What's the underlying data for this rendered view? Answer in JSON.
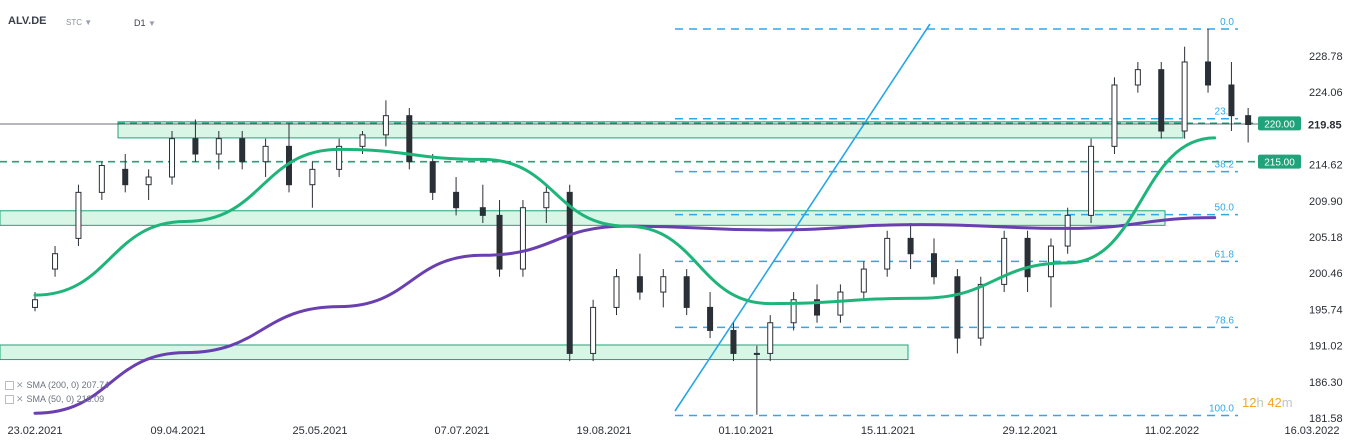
{
  "header": {
    "symbol": "ALV.DE",
    "source": "STC",
    "timeframe": "D1"
  },
  "legend": [
    {
      "label": "SMA (200, 0)",
      "value": "207.74",
      "color": "#6a3fb0"
    },
    {
      "label": "SMA (50, 0)",
      "value": "218.09",
      "color": "#1fb57a"
    }
  ],
  "timer": {
    "hours": "12",
    "h_unit": "h",
    "minutes": "42",
    "m_unit": "m"
  },
  "chart_data": {
    "type": "candlestick",
    "x_tick_labels": [
      "23.02.2021",
      "09.04.2021",
      "25.05.2021",
      "07.07.2021",
      "19.08.2021",
      "01.10.2021",
      "15.11.2021",
      "29.12.2021",
      "11.02.2022",
      "16.03.2022"
    ],
    "y_tick_labels": [
      "228.78",
      "224.06",
      "219.85",
      "214.62",
      "209.90",
      "205.18",
      "200.46",
      "195.74",
      "191.02",
      "186.30",
      "181.58"
    ],
    "ylim": [
      181.58,
      232.5
    ],
    "last_price": "219.85",
    "horizontal_levels": [
      {
        "label": "220.00",
        "value": 220.0,
        "color": "#1fa37a"
      },
      {
        "label": "215.00",
        "value": 215.0,
        "color": "#1fa37a"
      }
    ],
    "fibonacci": [
      {
        "label": "0.0",
        "value": 232.3
      },
      {
        "label": "23.6",
        "value": 220.6
      },
      {
        "label": "38.2",
        "value": 213.7
      },
      {
        "label": "50.0",
        "value": 208.1
      },
      {
        "label": "61.8",
        "value": 202.0
      },
      {
        "label": "78.6",
        "value": 193.4
      },
      {
        "label": "100.0",
        "value": 181.9
      }
    ],
    "zones": [
      {
        "from": 218.1,
        "to": 220.2
      },
      {
        "from": 206.7,
        "to": 208.6
      },
      {
        "from": 189.2,
        "to": 191.1
      }
    ],
    "series": [
      {
        "name": "SMA (200, 0)",
        "color": "#6a3fb0",
        "points": [
          [
            "2021-02-23",
            182.2
          ],
          [
            "2021-04-09",
            190.1
          ],
          [
            "2021-05-25",
            196.1
          ],
          [
            "2021-07-07",
            202.8
          ],
          [
            "2021-08-19",
            206.6
          ],
          [
            "2021-10-01",
            206.1
          ],
          [
            "2021-11-15",
            206.8
          ],
          [
            "2021-12-29",
            206.3
          ],
          [
            "2022-02-11",
            207.7
          ]
        ]
      },
      {
        "name": "SMA (50, 0)",
        "color": "#1fb57a",
        "points": [
          [
            "2021-02-23",
            197.6
          ],
          [
            "2021-04-09",
            207.2
          ],
          [
            "2021-05-25",
            216.6
          ],
          [
            "2021-07-07",
            215.3
          ],
          [
            "2021-08-19",
            206.6
          ],
          [
            "2021-10-01",
            196.5
          ],
          [
            "2021-11-15",
            197.2
          ],
          [
            "2021-12-29",
            201.8
          ],
          [
            "2022-02-11",
            218.1
          ]
        ]
      }
    ],
    "candles": [
      [
        "2021-02-23",
        196,
        198,
        195.5,
        197
      ],
      [
        "2021-03-01",
        201,
        204,
        200,
        203
      ],
      [
        "2021-03-08",
        205,
        212,
        204,
        211
      ],
      [
        "2021-03-15",
        211,
        215,
        210,
        214.5
      ],
      [
        "2021-03-22",
        214,
        216,
        211,
        212
      ],
      [
        "2021-03-29",
        212,
        214,
        210,
        213
      ],
      [
        "2021-04-05",
        213,
        219,
        212,
        218
      ],
      [
        "2021-04-12",
        218,
        220.5,
        215,
        216
      ],
      [
        "2021-04-19",
        216,
        219,
        214,
        218
      ],
      [
        "2021-04-26",
        218,
        219,
        214,
        215
      ],
      [
        "2021-05-03",
        215,
        218,
        213,
        217
      ],
      [
        "2021-05-10",
        217,
        220,
        211,
        212
      ],
      [
        "2021-05-17",
        212,
        215,
        209,
        214
      ],
      [
        "2021-05-25",
        214,
        218,
        213,
        217
      ],
      [
        "2021-06-01",
        217,
        219,
        216,
        218.5
      ],
      [
        "2021-06-08",
        218.5,
        223,
        217,
        221
      ],
      [
        "2021-06-15",
        221,
        222,
        214,
        215
      ],
      [
        "2021-06-22",
        215,
        216,
        210,
        211
      ],
      [
        "2021-06-29",
        211,
        213,
        208,
        209
      ],
      [
        "2021-07-07",
        209,
        212,
        207,
        208
      ],
      [
        "2021-07-12",
        208,
        210,
        200,
        201
      ],
      [
        "2021-07-19",
        201,
        210,
        200,
        209
      ],
      [
        "2021-07-26",
        209,
        212,
        207,
        211
      ],
      [
        "2021-08-02",
        211,
        212,
        189,
        190
      ],
      [
        "2021-08-09",
        190,
        197,
        189,
        196
      ],
      [
        "2021-08-16",
        196,
        201,
        195,
        200
      ],
      [
        "2021-08-23",
        200,
        203,
        197,
        198
      ],
      [
        "2021-08-30",
        198,
        201,
        196,
        200
      ],
      [
        "2021-09-06",
        200,
        201,
        195,
        196
      ],
      [
        "2021-09-13",
        196,
        198,
        192,
        193
      ],
      [
        "2021-09-20",
        193,
        194,
        189,
        190
      ],
      [
        "2021-09-27",
        190,
        191,
        182,
        190
      ],
      [
        "2021-10-01",
        190,
        195,
        189,
        194
      ],
      [
        "2021-10-08",
        194,
        198,
        193,
        197
      ],
      [
        "2021-10-15",
        197,
        199,
        194,
        195
      ],
      [
        "2021-10-22",
        195,
        199,
        194,
        198
      ],
      [
        "2021-10-29",
        198,
        202,
        197,
        201
      ],
      [
        "2021-11-05",
        201,
        206,
        200,
        205
      ],
      [
        "2021-11-12",
        205,
        207,
        201,
        203
      ],
      [
        "2021-11-19",
        203,
        205,
        199,
        200
      ],
      [
        "2021-11-26",
        200,
        201,
        190,
        192
      ],
      [
        "2021-12-03",
        192,
        200,
        191,
        199
      ],
      [
        "2021-12-10",
        199,
        206,
        198,
        205
      ],
      [
        "2021-12-17",
        205,
        206,
        198,
        200
      ],
      [
        "2021-12-24",
        200,
        205,
        196,
        204
      ],
      [
        "2021-12-29",
        204,
        209,
        203,
        208
      ],
      [
        "2022-01-05",
        208,
        218,
        207,
        217
      ],
      [
        "2022-01-12",
        217,
        226,
        216,
        225
      ],
      [
        "2022-01-19",
        225,
        228,
        224,
        227
      ],
      [
        "2022-01-26",
        227,
        228,
        218,
        219
      ],
      [
        "2022-02-02",
        219,
        230,
        218,
        228
      ],
      [
        "2022-02-09",
        228,
        232.3,
        224,
        225
      ],
      [
        "2022-02-16",
        225,
        228,
        219,
        221
      ],
      [
        "2022-02-21",
        221,
        222,
        217.5,
        219.85
      ]
    ]
  }
}
